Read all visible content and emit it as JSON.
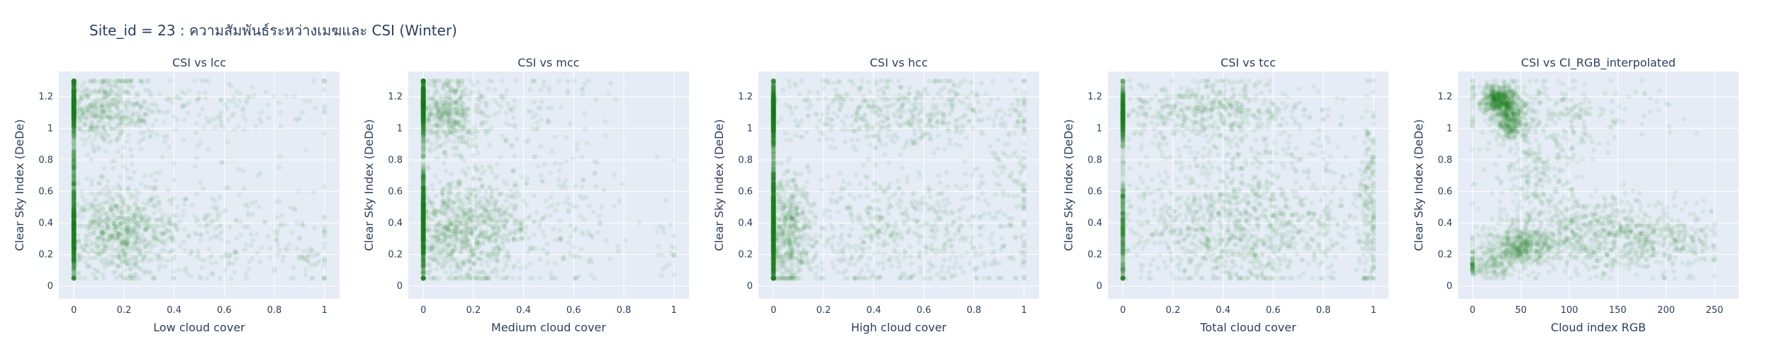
{
  "title": "Site_id = 23 : ความสัมพันธ์ระหว่างเมฆและ CSI (Winter)",
  "style": {
    "plot_bg": "#e5ecf6",
    "grid": "#ffffff",
    "marker": "#1a7a1a",
    "marker_opacity": 0.08
  },
  "chart_data": [
    {
      "type": "scatter",
      "title": "CSI vs lcc",
      "xlabel": "Low cloud cover",
      "ylabel": "Clear Sky Index (DeDe)",
      "xlim": [
        -0.06,
        1.06
      ],
      "ylim": [
        -0.08,
        1.36
      ],
      "xticks": [
        0,
        0.2,
        0.4,
        0.6,
        0.8,
        1
      ],
      "xtick_labels": [
        "0",
        "0.2",
        "0.4",
        "0.6",
        "0.8",
        "1"
      ],
      "yticks": [
        0,
        0.2,
        0.4,
        0.6,
        0.8,
        1,
        1.2
      ],
      "ytick_labels": [
        "0",
        "0.2",
        "0.4",
        "0.6",
        "0.8",
        "1",
        "1.2"
      ],
      "clusters": [
        {
          "x": 0,
          "y": 1.15,
          "sx": 0,
          "sy": 0.09,
          "n": 500
        },
        {
          "x": 0,
          "y": 0.35,
          "sx": 0,
          "sy": 0.15,
          "n": 600
        },
        {
          "x": 0,
          "y": 0.75,
          "sx": 0,
          "sy": 0.15,
          "n": 150
        },
        {
          "x": 0.12,
          "y": 1.1,
          "sx": 0.1,
          "sy": 0.12,
          "n": 450
        },
        {
          "x": 0.18,
          "y": 0.35,
          "sx": 0.12,
          "sy": 0.15,
          "n": 700
        },
        {
          "x": 0.55,
          "y": 0.35,
          "sx": 0.25,
          "sy": 0.2,
          "n": 250
        },
        {
          "x": 0.5,
          "y": 1.1,
          "sx": 0.25,
          "sy": 0.15,
          "n": 150
        },
        {
          "x": 0.95,
          "y": 0.15,
          "sx": 0.05,
          "sy": 0.1,
          "n": 40
        }
      ]
    },
    {
      "type": "scatter",
      "title": "CSI vs mcc",
      "xlabel": "Medium cloud cover",
      "ylabel": "Clear Sky Index (DeDe)",
      "xlim": [
        -0.06,
        1.06
      ],
      "ylim": [
        -0.08,
        1.36
      ],
      "xticks": [
        0,
        0.2,
        0.4,
        0.6,
        0.8,
        1
      ],
      "xtick_labels": [
        "0",
        "0.2",
        "0.4",
        "0.6",
        "0.8",
        "1"
      ],
      "yticks": [
        0,
        0.2,
        0.4,
        0.6,
        0.8,
        1,
        1.2
      ],
      "ytick_labels": [
        "0",
        "0.2",
        "0.4",
        "0.6",
        "0.8",
        "1",
        "1.2"
      ],
      "clusters": [
        {
          "x": 0,
          "y": 1.15,
          "sx": 0,
          "sy": 0.1,
          "n": 600
        },
        {
          "x": 0,
          "y": 0.4,
          "sx": 0,
          "sy": 0.2,
          "n": 800
        },
        {
          "x": 0.1,
          "y": 1.1,
          "sx": 0.08,
          "sy": 0.12,
          "n": 450
        },
        {
          "x": 0.15,
          "y": 0.35,
          "sx": 0.12,
          "sy": 0.18,
          "n": 800
        },
        {
          "x": 0.45,
          "y": 0.4,
          "sx": 0.2,
          "sy": 0.25,
          "n": 250
        },
        {
          "x": 0.4,
          "y": 1.1,
          "sx": 0.2,
          "sy": 0.15,
          "n": 100
        },
        {
          "x": 0.98,
          "y": 0.2,
          "sx": 0.03,
          "sy": 0.1,
          "n": 20
        }
      ]
    },
    {
      "type": "scatter",
      "title": "CSI vs hcc",
      "xlabel": "High cloud cover",
      "ylabel": "Clear Sky Index (DeDe)",
      "xlim": [
        -0.06,
        1.06
      ],
      "ylim": [
        -0.08,
        1.36
      ],
      "xticks": [
        0,
        0.2,
        0.4,
        0.6,
        0.8,
        1
      ],
      "xtick_labels": [
        "0",
        "0.2",
        "0.4",
        "0.6",
        "0.8",
        "1"
      ],
      "yticks": [
        0,
        0.2,
        0.4,
        0.6,
        0.8,
        1,
        1.2
      ],
      "ytick_labels": [
        "0",
        "0.2",
        "0.4",
        "0.6",
        "0.8",
        "1",
        "1.2"
      ],
      "clusters": [
        {
          "x": 0,
          "y": 1.1,
          "sx": 0,
          "sy": 0.1,
          "n": 700
        },
        {
          "x": 0,
          "y": 0.4,
          "sx": 0,
          "sy": 0.22,
          "n": 1000
        },
        {
          "x": 0.06,
          "y": 0.35,
          "sx": 0.05,
          "sy": 0.2,
          "n": 500
        },
        {
          "x": 0.5,
          "y": 1.1,
          "sx": 0.28,
          "sy": 0.12,
          "n": 500
        },
        {
          "x": 0.5,
          "y": 0.35,
          "sx": 0.28,
          "sy": 0.2,
          "n": 600
        },
        {
          "x": 0.95,
          "y": 0.7,
          "sx": 0.05,
          "sy": 0.35,
          "n": 80
        }
      ]
    },
    {
      "type": "scatter",
      "title": "CSI vs tcc",
      "xlabel": "Total cloud cover",
      "ylabel": "Clear Sky Index (DeDe)",
      "xlim": [
        -0.06,
        1.06
      ],
      "ylim": [
        -0.08,
        1.36
      ],
      "xticks": [
        0,
        0.2,
        0.4,
        0.6,
        0.8,
        1
      ],
      "xtick_labels": [
        "0",
        "0.2",
        "0.4",
        "0.6",
        "0.8",
        "1"
      ],
      "yticks": [
        0,
        0.2,
        0.4,
        0.6,
        0.8,
        1,
        1.2
      ],
      "ytick_labels": [
        "0",
        "0.2",
        "0.4",
        "0.6",
        "0.8",
        "1",
        "1.2"
      ],
      "clusters": [
        {
          "x": 0,
          "y": 1.1,
          "sx": 0,
          "sy": 0.09,
          "n": 400
        },
        {
          "x": 0,
          "y": 0.35,
          "sx": 0,
          "sy": 0.2,
          "n": 300
        },
        {
          "x": 0.35,
          "y": 1.12,
          "sx": 0.22,
          "sy": 0.1,
          "n": 500
        },
        {
          "x": 0.45,
          "y": 0.35,
          "sx": 0.25,
          "sy": 0.18,
          "n": 900
        },
        {
          "x": 0.5,
          "y": 0.75,
          "sx": 0.3,
          "sy": 0.15,
          "n": 250
        },
        {
          "x": 0.98,
          "y": 0.5,
          "sx": 0.02,
          "sy": 0.35,
          "n": 150
        }
      ]
    },
    {
      "type": "scatter",
      "title": "CSI vs CI_RGB_interpolated",
      "xlabel": "Cloud index RGB",
      "ylabel": "Clear Sky Index (DeDe)",
      "xlim": [
        -15,
        275
      ],
      "ylim": [
        -0.08,
        1.36
      ],
      "xticks": [
        0,
        50,
        100,
        150,
        200,
        250
      ],
      "xtick_labels": [
        "0",
        "50",
        "100",
        "150",
        "200",
        "250"
      ],
      "yticks": [
        0,
        0.2,
        0.4,
        0.6,
        0.8,
        1,
        1.2
      ],
      "ytick_labels": [
        "0",
        "0.2",
        "0.4",
        "0.6",
        "0.8",
        "1",
        "1.2"
      ],
      "clusters": [
        {
          "x": 28,
          "y": 1.18,
          "sx": 10,
          "sy": 0.05,
          "n": 500
        },
        {
          "x": 40,
          "y": 1.05,
          "sx": 8,
          "sy": 0.07,
          "n": 300
        },
        {
          "x": 85,
          "y": 1.1,
          "sx": 50,
          "sy": 0.12,
          "n": 250
        },
        {
          "x": 50,
          "y": 0.25,
          "sx": 15,
          "sy": 0.06,
          "n": 350
        },
        {
          "x": 18,
          "y": 0.15,
          "sx": 15,
          "sy": 0.05,
          "n": 150
        },
        {
          "x": 130,
          "y": 0.32,
          "sx": 50,
          "sy": 0.12,
          "n": 700
        },
        {
          "x": 65,
          "y": 0.65,
          "sx": 25,
          "sy": 0.2,
          "n": 250
        },
        {
          "x": 200,
          "y": 0.3,
          "sx": 30,
          "sy": 0.1,
          "n": 150
        },
        {
          "x": 0,
          "y": 0.12,
          "sx": 0,
          "sy": 0.02,
          "n": 30
        }
      ]
    }
  ]
}
